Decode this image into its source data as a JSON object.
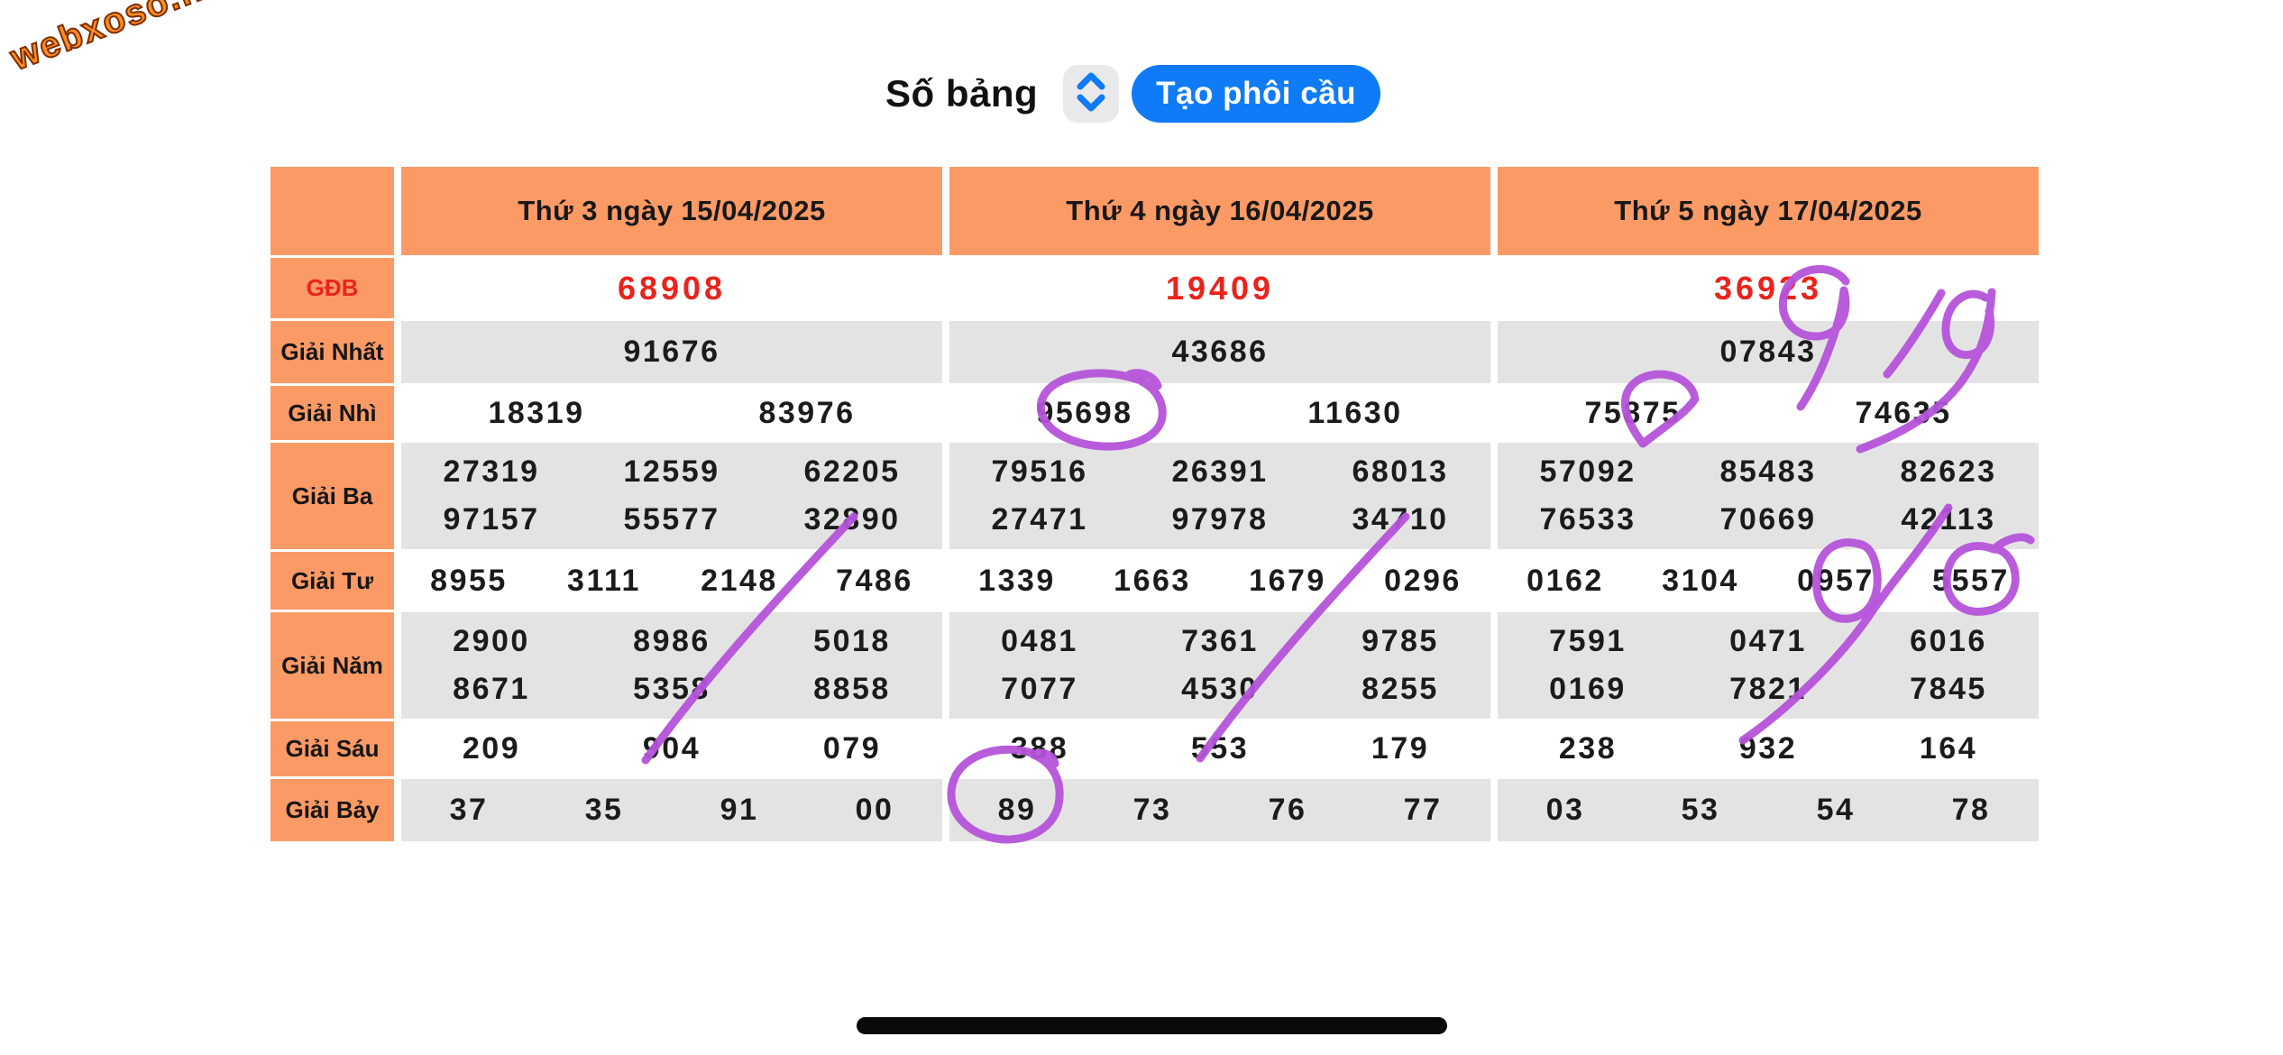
{
  "watermark": {
    "text": "webxoso.net"
  },
  "toolbar": {
    "title": "Số bảng",
    "sort_icon": "up-down-chevrons-icon",
    "button_label": "Tạo phôi cầu"
  },
  "table": {
    "columns": [
      "Thứ 3 ngày 15/04/2025",
      "Thứ 4 ngày 16/04/2025",
      "Thứ 5 ngày 17/04/2025"
    ],
    "rows": [
      {
        "label": "GĐB",
        "values": [
          [
            "68908"
          ],
          [
            "19409"
          ],
          [
            "36923"
          ]
        ]
      },
      {
        "label": "Giải Nhất",
        "values": [
          [
            "91676"
          ],
          [
            "43686"
          ],
          [
            "07843"
          ]
        ]
      },
      {
        "label": "Giải Nhì",
        "values": [
          [
            "18319",
            "83976"
          ],
          [
            "95698",
            "11630"
          ],
          [
            "75875",
            "74635"
          ]
        ]
      },
      {
        "label": "Giải Ba",
        "values": [
          [
            "27319",
            "12559",
            "62205",
            "97157",
            "55577",
            "32890"
          ],
          [
            "79516",
            "26391",
            "68013",
            "27471",
            "97978",
            "34710"
          ],
          [
            "57092",
            "85483",
            "82623",
            "76533",
            "70669",
            "42113"
          ]
        ]
      },
      {
        "label": "Giải Tư",
        "values": [
          [
            "8955",
            "3111",
            "2148",
            "7486"
          ],
          [
            "1339",
            "1663",
            "1679",
            "0296"
          ],
          [
            "0162",
            "3104",
            "0957",
            "5557"
          ]
        ]
      },
      {
        "label": "Giải Năm",
        "values": [
          [
            "2900",
            "8986",
            "5018",
            "8671",
            "5358",
            "8858"
          ],
          [
            "0481",
            "7361",
            "9785",
            "7077",
            "4530",
            "8255"
          ],
          [
            "7591",
            "0471",
            "6016",
            "0169",
            "7821",
            "7845"
          ]
        ]
      },
      {
        "label": "Giải Sáu",
        "values": [
          [
            "209",
            "904",
            "079"
          ],
          [
            "388",
            "553",
            "179"
          ],
          [
            "238",
            "932",
            "164"
          ]
        ]
      },
      {
        "label": "Giải Bảy",
        "values": [
          [
            "37",
            "35",
            "91",
            "00"
          ],
          [
            "89",
            "73",
            "76",
            "77"
          ],
          [
            "03",
            "53",
            "54",
            "78"
          ]
        ]
      }
    ]
  },
  "annotations": {
    "pen_color": "#b553da",
    "handwritten_text": "919",
    "circled_values": [
      "698 in 95698",
      "89",
      "75 in 75875",
      "57 in 0957",
      "55 in 5557"
    ],
    "stroke_marks": [
      "diagonal line from 904 up to 32890 (col 15/04)",
      "diagonal line from 553 up to 34710 (col 16/04)",
      "curved line from 932 up to 42113 (col 17/04)"
    ]
  },
  "colors": {
    "orange": "#fc9a66",
    "row_gray": "#e3e3e3",
    "red": "#e8241c",
    "blue": "#0f7bf7",
    "icon_bg": "#e9e9ec",
    "purple": "#b553da"
  }
}
